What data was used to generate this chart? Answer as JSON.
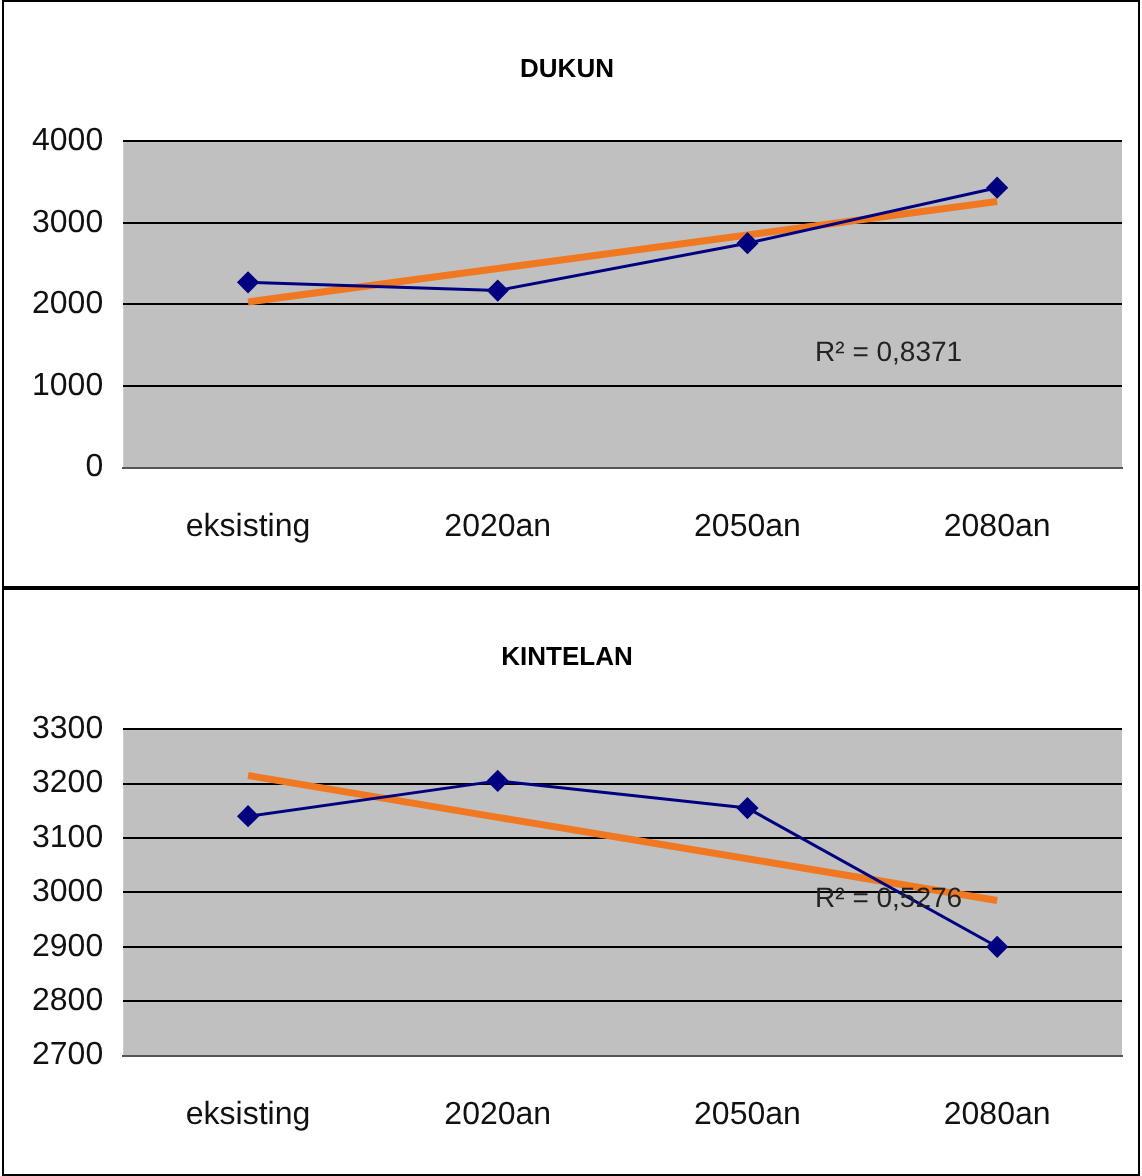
{
  "chart_data": [
    {
      "type": "line",
      "title": "DUKUN",
      "categories": [
        "eksisting",
        "2020an",
        "2050an",
        "2080an"
      ],
      "series": [
        {
          "color": "#000080",
          "marker": "diamond",
          "values": [
            2270,
            2170,
            2750,
            3430
          ]
        },
        {
          "color": "#f07820",
          "marker": "none",
          "values": [
            2030,
            2440,
            2850,
            3260
          ]
        }
      ],
      "ylim": [
        0,
        4000
      ],
      "yticks": [
        0,
        1000,
        2000,
        3000,
        4000
      ],
      "grid": "y",
      "annotations": [
        "R² = 0,8371"
      ]
    },
    {
      "type": "line",
      "title": "KINTELAN",
      "categories": [
        "eksisting",
        "2020an",
        "2050an",
        "2080an"
      ],
      "series": [
        {
          "color": "#000080",
          "marker": "diamond",
          "values": [
            3140,
            3205,
            3155,
            2900
          ]
        },
        {
          "color": "#f07820",
          "marker": "none",
          "values": [
            3215,
            3138,
            3062,
            2985
          ]
        }
      ],
      "ylim": [
        2700,
        3300
      ],
      "yticks": [
        2700,
        2800,
        2900,
        3000,
        3100,
        3200,
        3300
      ],
      "grid": "y",
      "annotations": [
        "R² = 0,5276"
      ]
    }
  ]
}
